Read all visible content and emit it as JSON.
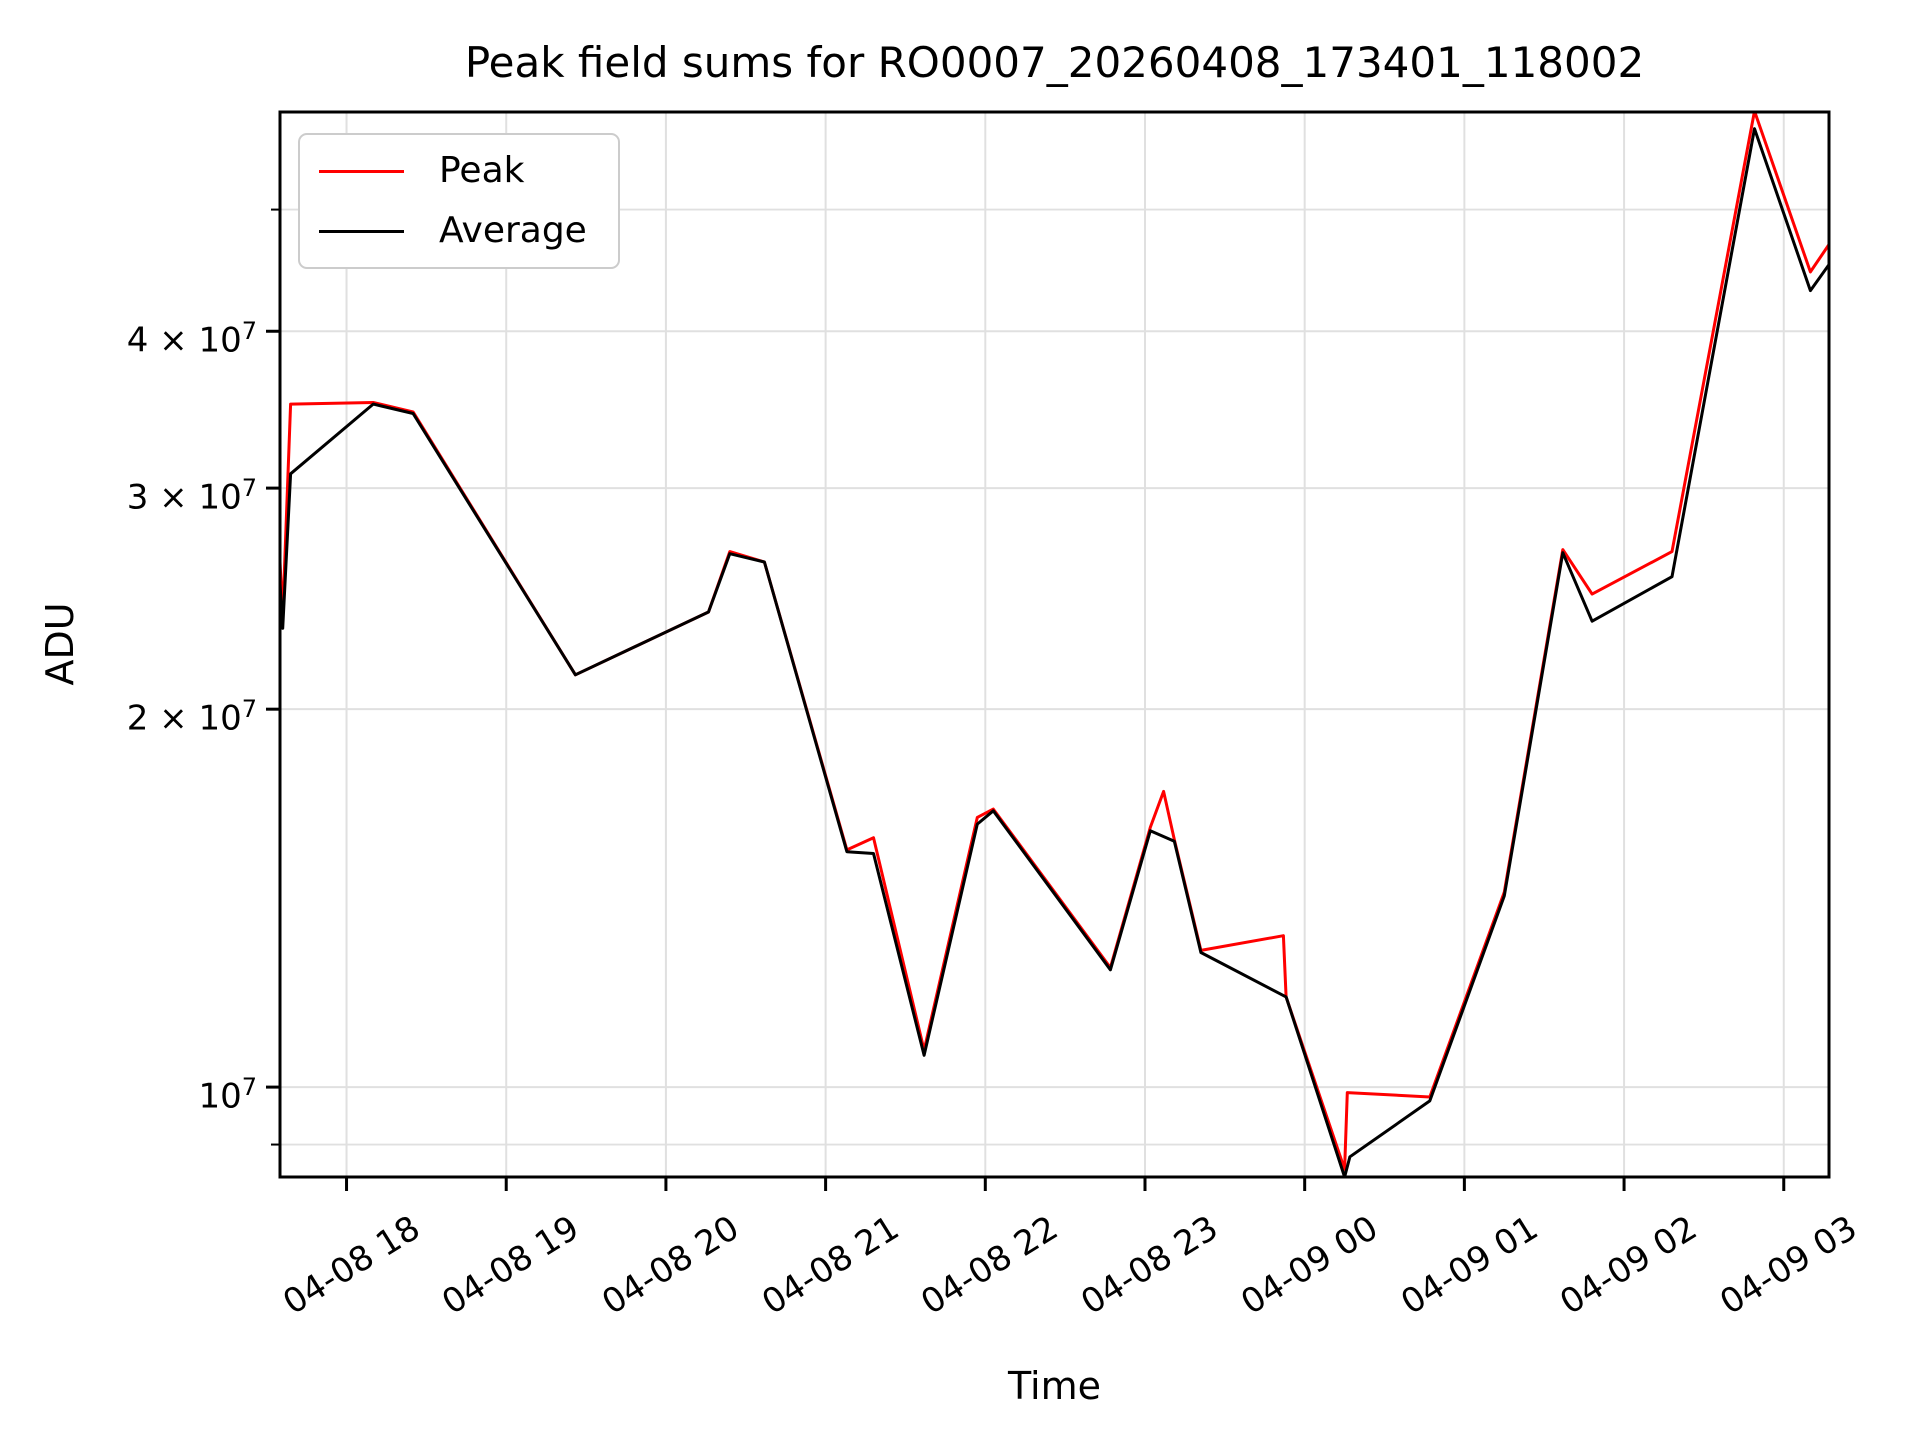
{
  "figure": {
    "title": "Peak field sums for RO0007_20260408_173401_118002",
    "xlabel": "Time",
    "ylabel": "ADU"
  },
  "legend": {
    "entries": [
      {
        "label": "Peak",
        "color": "#ff0000"
      },
      {
        "label": "Average",
        "color": "#000000"
      }
    ]
  },
  "chart_data": {
    "type": "line",
    "title": "Peak field sums for RO0007_20260408_173401_118002",
    "xlabel": "Time",
    "ylabel": "ADU",
    "yscale": "log",
    "grid": true,
    "legend_position": "upper left",
    "ylim": [
      8480000,
      59800000
    ],
    "xlim": [
      "04-08 17:35",
      "04-09 03:17"
    ],
    "x_tick_labels": [
      "04-08 18",
      "04-08 19",
      "04-08 20",
      "04-08 21",
      "04-08 22",
      "04-08 23",
      "04-09 00",
      "04-09 01",
      "04-09 02",
      "04-09 03"
    ],
    "y_ticks": [
      {
        "value": 40000000,
        "base": "4 × 10",
        "exp": "7"
      },
      {
        "value": 30000000,
        "base": "3 × 10",
        "exp": "7"
      },
      {
        "value": 20000000,
        "base": "2 × 10",
        "exp": "7"
      },
      {
        "value": 10000000,
        "base": "10",
        "exp": "7"
      }
    ],
    "y_minor_ticks": [
      50000000,
      9000000
    ],
    "series": [
      {
        "name": "Peak",
        "color": "#ff0000",
        "points": [
          [
            "04-08 17:35",
            26200000
          ],
          [
            "04-08 17:36",
            23700000
          ],
          [
            "04-08 17:39",
            35000000
          ],
          [
            "04-08 18:10",
            35100000
          ],
          [
            "04-08 18:25",
            34500000
          ],
          [
            "04-08 19:26",
            21300000
          ],
          [
            "04-08 20:16",
            23900000
          ],
          [
            "04-08 20:24",
            26700000
          ],
          [
            "04-08 20:37",
            26200000
          ],
          [
            "04-08 21:08",
            15450000
          ],
          [
            "04-08 21:18",
            15800000
          ],
          [
            "04-08 21:37",
            10700000
          ],
          [
            "04-08 21:57",
            16400000
          ],
          [
            "04-08 22:03",
            16650000
          ],
          [
            "04-08 22:47",
            12450000
          ],
          [
            "04-08 23:02",
            16100000
          ],
          [
            "04-08 23:07",
            17200000
          ],
          [
            "04-08 23:11",
            15750000
          ],
          [
            "04-08 23:21",
            12850000
          ],
          [
            "04-08 23:52",
            13200000
          ],
          [
            "04-08 23:53",
            11800000
          ],
          [
            "04-09 00:15",
            8600000
          ],
          [
            "04-09 00:16",
            9900000
          ],
          [
            "04-09 00:47",
            9820000
          ],
          [
            "04-09 01:15",
            14300000
          ],
          [
            "04-09 01:37",
            26800000
          ],
          [
            "04-09 01:48",
            24700000
          ],
          [
            "04-09 02:18",
            26700000
          ],
          [
            "04-09 02:49",
            59900000
          ],
          [
            "04-09 03:10",
            44600000
          ],
          [
            "04-09 03:17",
            46900000
          ]
        ]
      },
      {
        "name": "Average",
        "color": "#000000",
        "points": [
          [
            "04-08 17:35",
            25200000
          ],
          [
            "04-08 17:36",
            23200000
          ],
          [
            "04-08 17:39",
            30800000
          ],
          [
            "04-08 18:10",
            35000000
          ],
          [
            "04-08 18:25",
            34400000
          ],
          [
            "04-08 19:26",
            21300000
          ],
          [
            "04-08 20:16",
            23900000
          ],
          [
            "04-08 20:24",
            26600000
          ],
          [
            "04-08 20:37",
            26200000
          ],
          [
            "04-08 21:08",
            15400000
          ],
          [
            "04-08 21:18",
            15350000
          ],
          [
            "04-08 21:37",
            10600000
          ],
          [
            "04-08 21:57",
            16200000
          ],
          [
            "04-08 22:03",
            16600000
          ],
          [
            "04-08 22:47",
            12400000
          ],
          [
            "04-08 23:02",
            16000000
          ],
          [
            "04-08 23:11",
            15700000
          ],
          [
            "04-08 23:21",
            12800000
          ],
          [
            "04-08 23:53",
            11800000
          ],
          [
            "04-09 00:15",
            8480000
          ],
          [
            "04-09 00:17",
            8800000
          ],
          [
            "04-09 00:47",
            9750000
          ],
          [
            "04-09 01:15",
            14200000
          ],
          [
            "04-09 01:37",
            26650000
          ],
          [
            "04-09 01:48",
            23500000
          ],
          [
            "04-09 02:18",
            25500000
          ],
          [
            "04-09 02:49",
            58000000
          ],
          [
            "04-09 03:10",
            43100000
          ],
          [
            "04-09 03:17",
            45200000
          ]
        ]
      }
    ]
  }
}
